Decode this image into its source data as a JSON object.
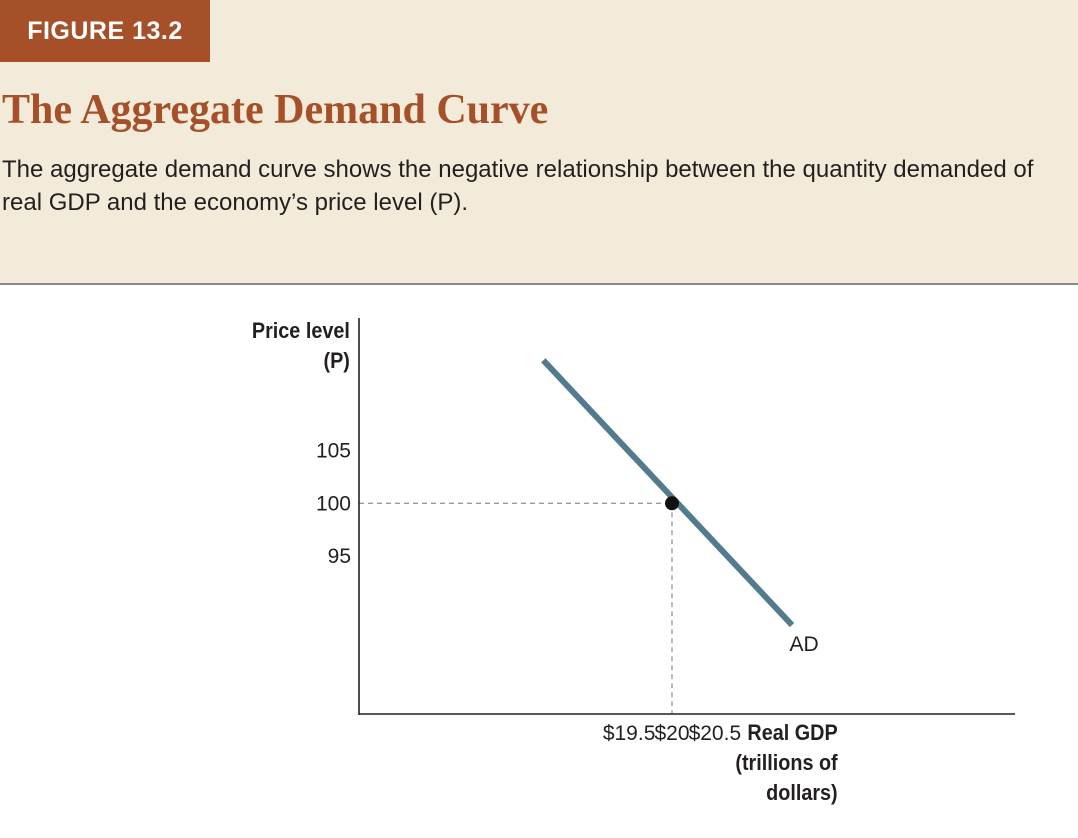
{
  "figure_label": "FIGURE 13.2",
  "title": "The Aggregate Demand Curve",
  "caption": "The aggregate demand curve shows the negative relationship between the quantity demanded of real GDP and the economy’s price level (P).",
  "colors": {
    "accent": "#a6502a",
    "header_bg": "#f3ebd9",
    "curve": "#547a8e"
  },
  "chart_data": {
    "type": "line",
    "ylabel_line1": "Price level",
    "ylabel_line2": "(P)",
    "xlabel_line1": "Real GDP",
    "xlabel_line2": "(trillions of",
    "xlabel_line3": "dollars)",
    "y_ticks": [
      {
        "value": 105,
        "label": "105"
      },
      {
        "value": 100,
        "label": "100"
      },
      {
        "value": 95,
        "label": "95"
      }
    ],
    "x_ticks": [
      {
        "value": 19.5,
        "label": "$19.5"
      },
      {
        "value": 20,
        "label": "$20"
      },
      {
        "value": 20.5,
        "label": "$20.5"
      }
    ],
    "series": [
      {
        "name": "AD",
        "x": [
          18.5,
          21.4
        ],
        "y": [
          113.5,
          88.5
        ]
      }
    ],
    "highlight_point": {
      "x": 20,
      "y": 100
    },
    "xlim": [
      16.35,
      24.0
    ],
    "ylim": [
      80.1,
      117.5
    ],
    "grid": false
  }
}
